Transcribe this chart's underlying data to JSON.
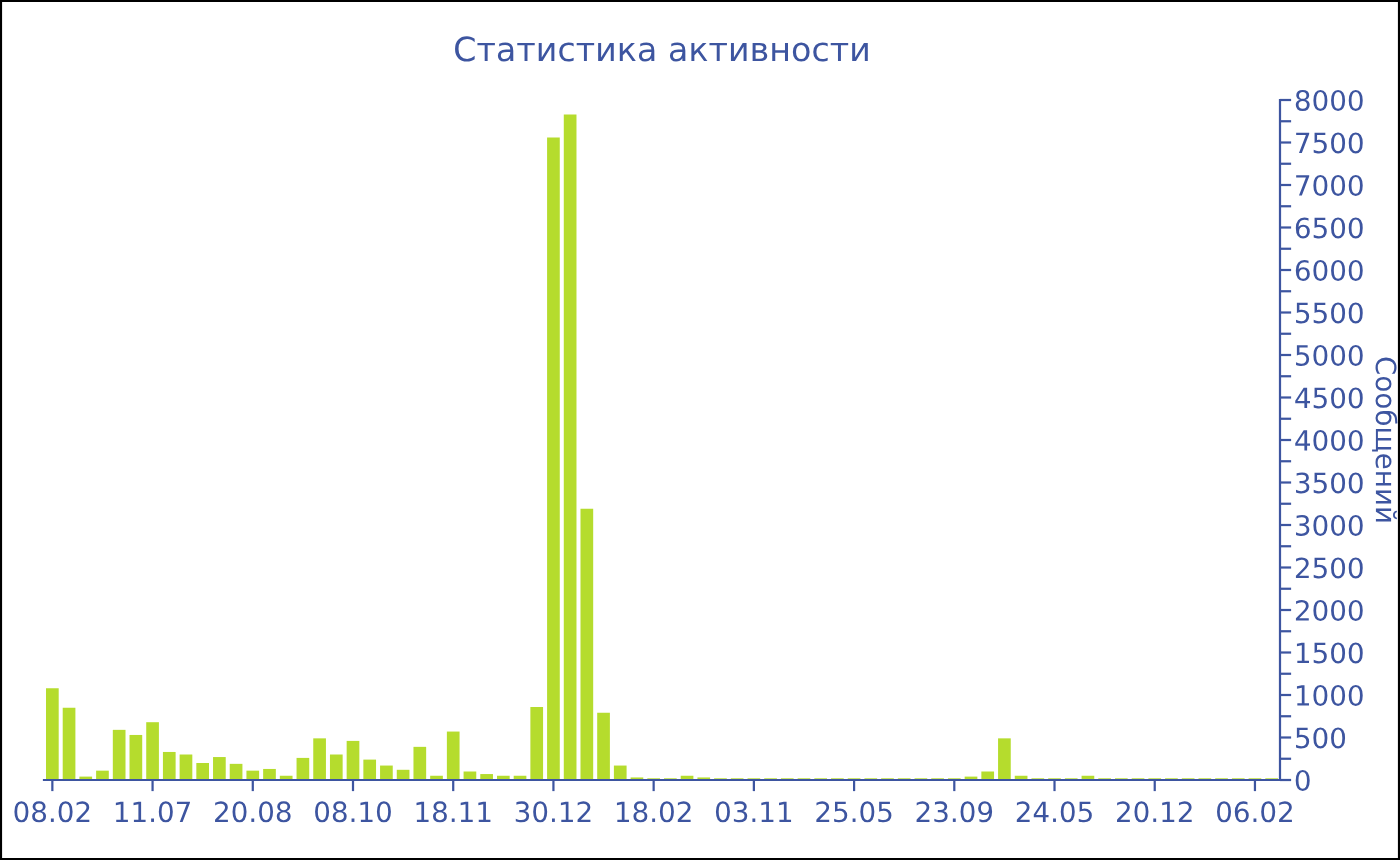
{
  "chart_data": {
    "type": "bar",
    "title": "Статистика активности",
    "ylabel": "Сообщений",
    "categories": [
      "08.02",
      null,
      null,
      null,
      null,
      null,
      "11.07",
      null,
      null,
      null,
      null,
      null,
      "20.08",
      null,
      null,
      null,
      null,
      null,
      "08.10",
      null,
      null,
      null,
      null,
      null,
      "18.11",
      null,
      null,
      null,
      null,
      null,
      "30.12",
      null,
      null,
      null,
      null,
      null,
      "18.02",
      null,
      null,
      null,
      null,
      null,
      "03.11",
      null,
      null,
      null,
      null,
      null,
      "25.05",
      null,
      null,
      null,
      null,
      null,
      "23.09",
      null,
      null,
      null,
      null,
      null,
      "24.05",
      null,
      null,
      null,
      null,
      null,
      "20.12",
      null,
      null,
      null,
      null,
      null,
      "06.02",
      null
    ],
    "values": [
      1080,
      850,
      40,
      110,
      590,
      530,
      680,
      330,
      300,
      200,
      270,
      190,
      110,
      130,
      50,
      260,
      490,
      300,
      460,
      240,
      170,
      120,
      390,
      50,
      570,
      100,
      70,
      50,
      50,
      860,
      7560,
      7830,
      3190,
      790,
      170,
      30,
      20,
      20,
      50,
      30,
      20,
      20,
      20,
      20,
      20,
      20,
      20,
      20,
      20,
      20,
      20,
      20,
      20,
      20,
      20,
      40,
      100,
      490,
      50,
      20,
      20,
      20,
      50,
      20,
      20,
      20,
      20,
      20,
      20,
      20,
      20,
      20,
      20,
      20
    ],
    "color": "#b5dc2d",
    "ylim": [
      0,
      8000
    ],
    "yticks": [
      0,
      {
        "value": 250,
        "label": null
      },
      500,
      {
        "value": 750,
        "label": null
      },
      1000,
      {
        "value": 1250,
        "label": null
      },
      1500,
      {
        "value": 1750,
        "label": null
      },
      2000,
      {
        "value": 2250,
        "label": null
      },
      2500,
      {
        "value": 2750,
        "label": null
      },
      3000,
      {
        "value": 3250,
        "label": null
      },
      3500,
      {
        "value": 3750,
        "label": null
      },
      4000,
      {
        "value": 4250,
        "label": null
      },
      4500,
      {
        "value": 4750,
        "label": null
      },
      5000,
      {
        "value": 5250,
        "label": null
      },
      5500,
      {
        "value": 5750,
        "label": null
      },
      6000,
      {
        "value": 6250,
        "label": null
      },
      6500,
      {
        "value": 6750,
        "label": null
      },
      7000,
      {
        "value": 7250,
        "label": null
      },
      7500,
      {
        "value": 7750,
        "label": null
      },
      8000
    ]
  }
}
